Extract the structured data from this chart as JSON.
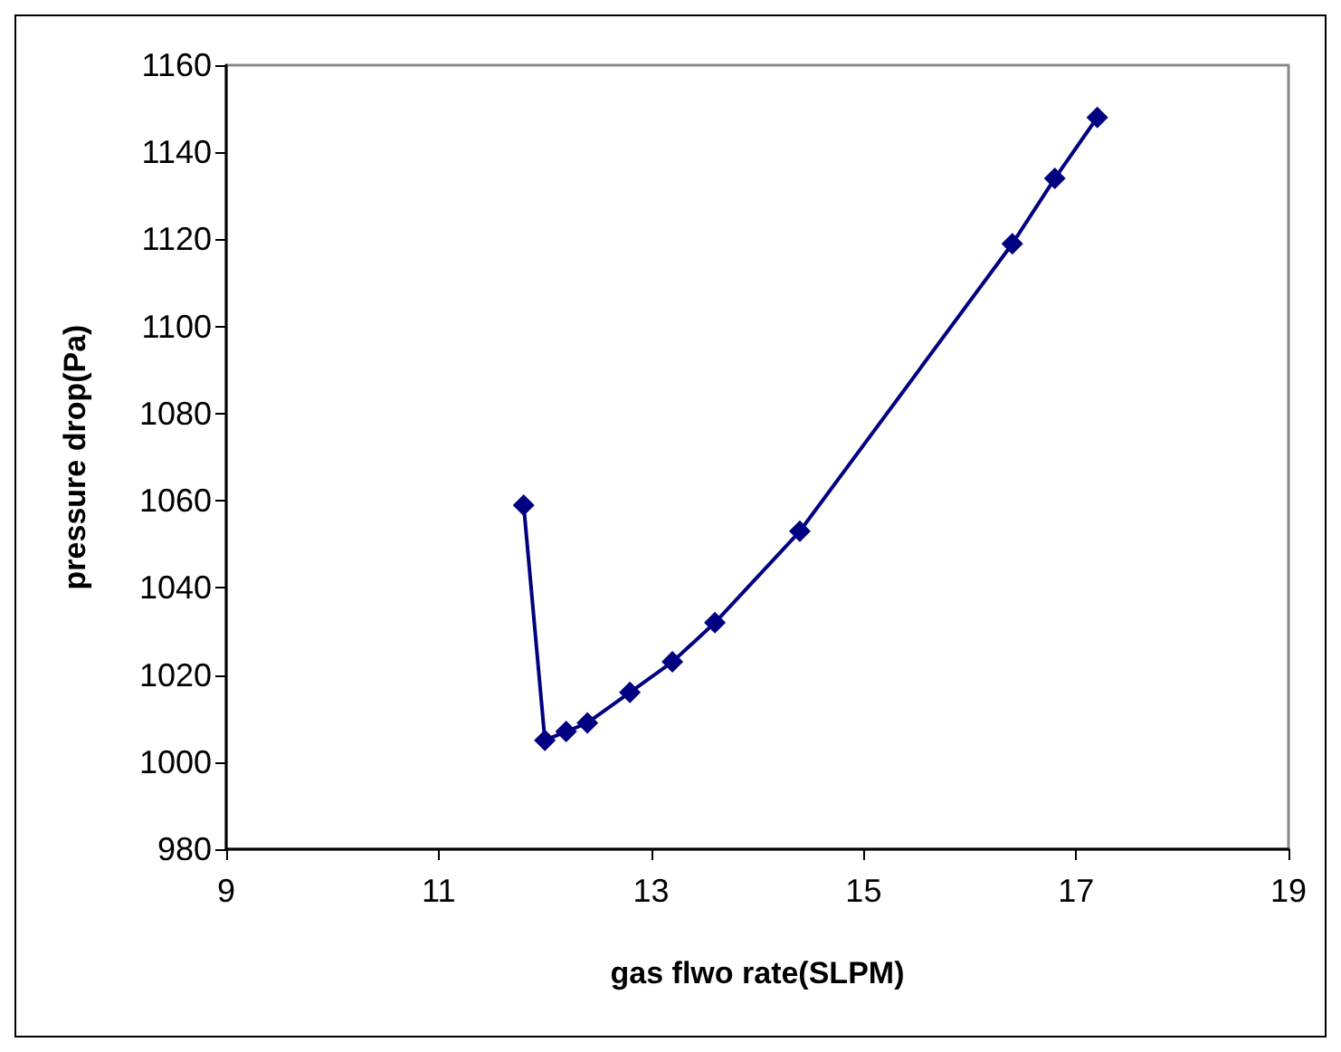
{
  "chart_data": {
    "type": "line",
    "xlabel": "gas flwo rate(SLPM)",
    "ylabel": "pressure drop(Pa)",
    "x": [
      11.8,
      12.0,
      12.2,
      12.4,
      12.8,
      13.2,
      13.6,
      14.4,
      16.4,
      16.8,
      17.2
    ],
    "series": [
      {
        "color": "#000080",
        "values": [
          1059,
          1005,
          1007,
          1009,
          1016,
          1023,
          1032,
          1053,
          1119,
          1134,
          1148
        ]
      }
    ],
    "xlim": [
      9,
      19
    ],
    "xticks": [
      9,
      11,
      13,
      15,
      17,
      19
    ],
    "ylim": [
      980,
      1160
    ],
    "yticks": [
      980,
      1000,
      1020,
      1040,
      1060,
      1080,
      1100,
      1120,
      1140,
      1160
    ],
    "grid": false,
    "marker": "diamond",
    "line_style": "solid"
  }
}
